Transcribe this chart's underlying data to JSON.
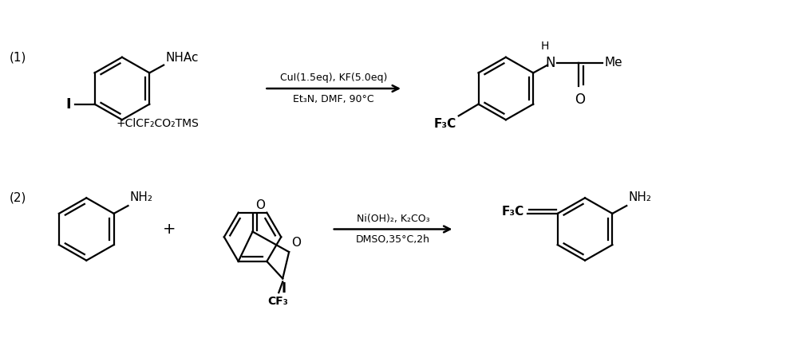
{
  "background_color": "#ffffff",
  "r1_label": "(1)",
  "r1_NHAc": "NHAc",
  "r1_reagent": "+ClCF₂CO₂TMS",
  "r1_I": "I",
  "r1_arrow_above": "CuI(1.5eq), KF(5.0eq)",
  "r1_arrow_below": "Et₃N, DMF, 90°C",
  "r1_prod_H": "H",
  "r1_prod_N": "N",
  "r1_prod_Me": "Me",
  "r1_prod_O": "O",
  "r1_prod_F3C": "F₃C",
  "r2_label": "(2)",
  "r2_NH2": "NH₂",
  "r2_plus": "+",
  "r2_O_carbonyl": "O",
  "r2_O_ring": "O",
  "r2_I": "I",
  "r2_CF3": "CF₃",
  "r2_arrow_above": "Ni(OH)₂, K₂CO₃",
  "r2_arrow_below": "DMSO,35°C,2h",
  "r2_prod_F3C": "F₃C",
  "r2_prod_NH2": "NH₂"
}
